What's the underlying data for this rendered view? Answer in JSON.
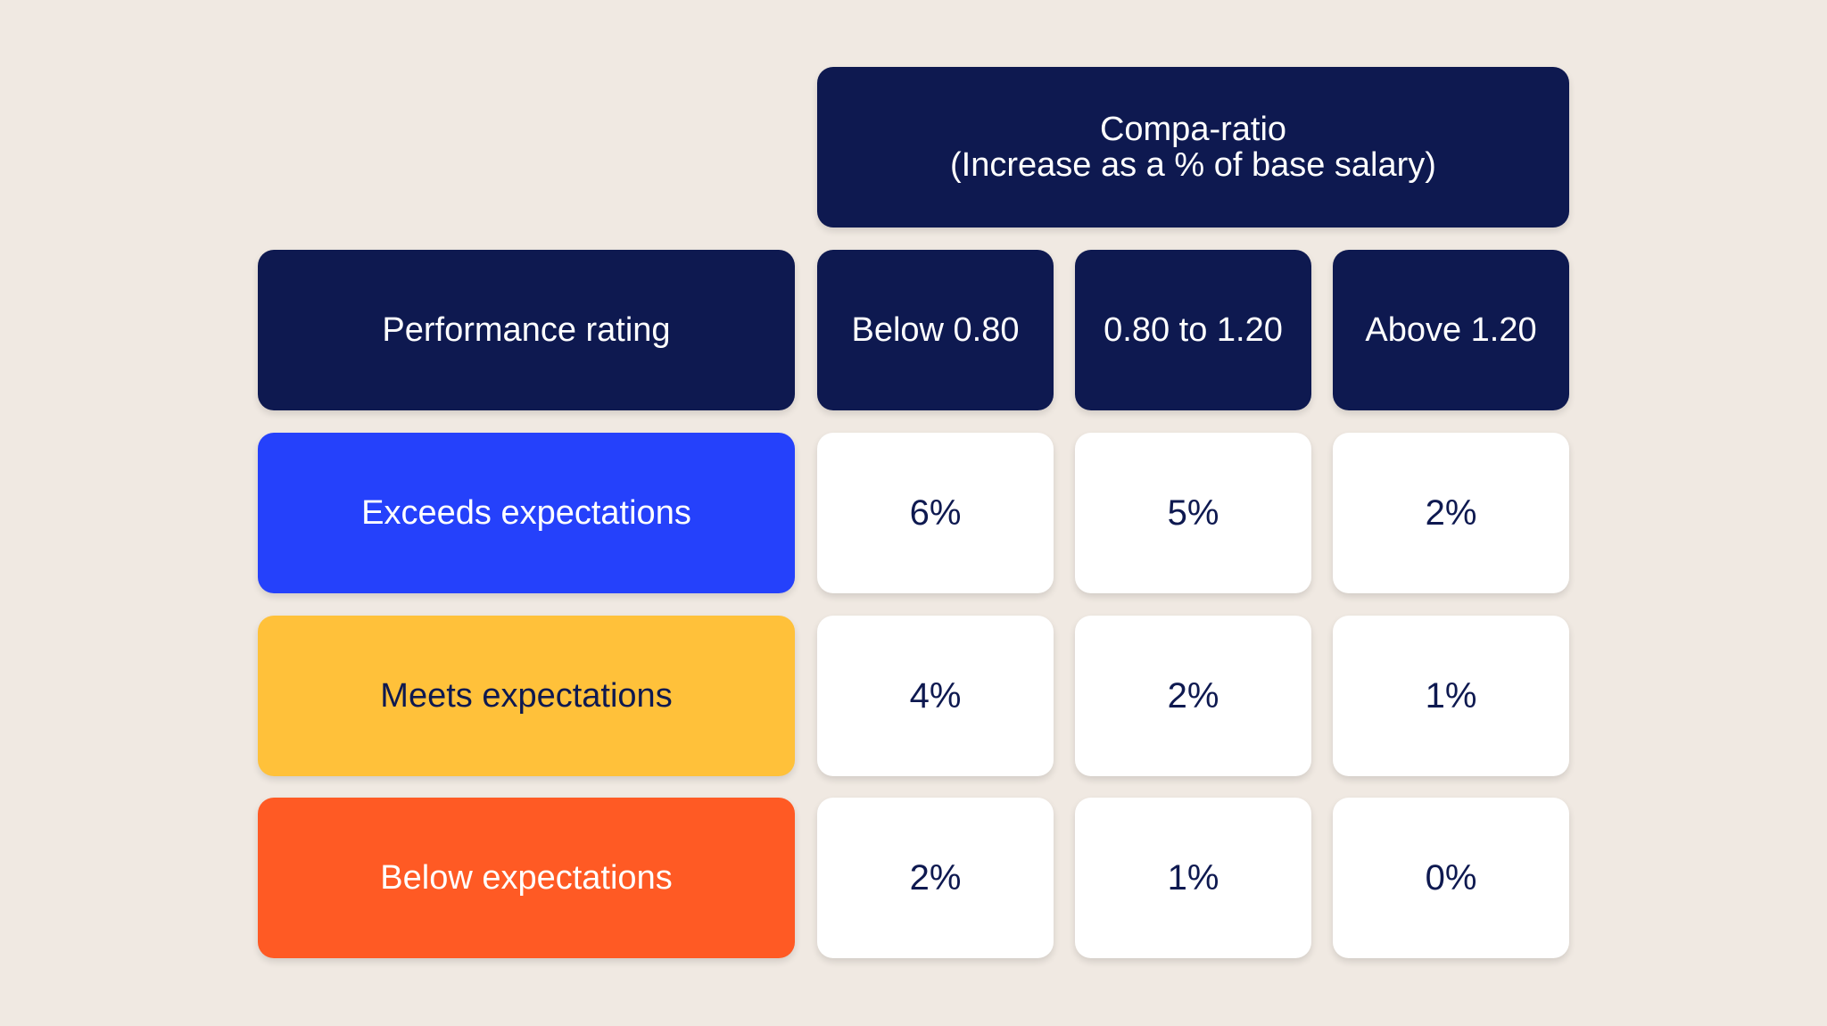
{
  "colors": {
    "background": "#f0e9e2",
    "header_navy": "#0e1950",
    "exceeds_blue": "#2541fb",
    "meets_yellow": "#ffc13a",
    "below_orange": "#ff5a24",
    "value_cell_bg": "#ffffff",
    "value_text": "#0e1950",
    "meets_text": "#0e1950"
  },
  "compa_ratio_header": {
    "line1": "Compa-ratio",
    "line2": "(Increase as a % of base salary)"
  },
  "row_header": "Performance rating",
  "columns": [
    "Below 0.80",
    "0.80 to 1.20",
    "Above 1.20"
  ],
  "rows": [
    {
      "label": "Exceeds expectations",
      "values": [
        "6%",
        "5%",
        "2%"
      ]
    },
    {
      "label": "Meets expectations",
      "values": [
        "4%",
        "2%",
        "1%"
      ]
    },
    {
      "label": "Below expectations",
      "values": [
        "2%",
        "1%",
        "0%"
      ]
    }
  ]
}
